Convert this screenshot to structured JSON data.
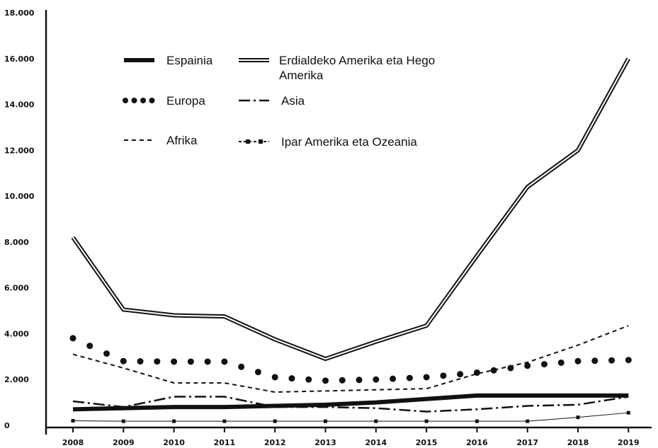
{
  "chart_data": {
    "type": "line",
    "title": "",
    "xlabel": "",
    "ylabel": "",
    "x": [
      "2008",
      "2009",
      "2010",
      "2011",
      "2012",
      "2013",
      "2014",
      "2015",
      "2016",
      "2017",
      "2018",
      "2019"
    ],
    "ylim": [
      0,
      18000
    ],
    "yticks": [
      0,
      2000,
      4000,
      6000,
      8000,
      10000,
      12000,
      14000,
      16000,
      18000
    ],
    "ytick_labels": [
      "0",
      "2.000",
      "4.000",
      "6.000",
      "8.000",
      "10.000",
      "12.000",
      "14.000",
      "16.000",
      "18.000"
    ],
    "grid": false,
    "legend_position": "top",
    "series": [
      {
        "name": "Espainia",
        "style": "thick",
        "color": "#111111",
        "values": [
          700,
          750,
          800,
          800,
          850,
          900,
          1000,
          1150,
          1300,
          1300,
          1300,
          1300
        ]
      },
      {
        "name": "Erdialdeko Amerika eta Hego Amerika",
        "style": "double",
        "color": "#111111",
        "values": [
          8200,
          5050,
          4800,
          4750,
          3750,
          2900,
          3650,
          4350,
          7400,
          10400,
          12000,
          16000
        ]
      },
      {
        "name": "Europa",
        "style": "dotted",
        "color": "#111111",
        "values": [
          3800,
          2800,
          2780,
          2780,
          2100,
          1950,
          2000,
          2100,
          2300,
          2600,
          2800,
          2850
        ]
      },
      {
        "name": "Asia",
        "style": "dashdot",
        "color": "#111111",
        "values": [
          1050,
          800,
          1250,
          1250,
          800,
          800,
          750,
          600,
          700,
          850,
          900,
          1250
        ]
      },
      {
        "name": "Afrika",
        "style": "dashed",
        "color": "#111111",
        "values": [
          3100,
          2500,
          1850,
          1850,
          1450,
          1500,
          1550,
          1600,
          2250,
          2750,
          3500,
          4350
        ]
      },
      {
        "name": "Ipar Amerika eta Ozeania",
        "style": "squares",
        "color": "#111111",
        "values": [
          200,
          180,
          180,
          180,
          180,
          180,
          180,
          180,
          180,
          180,
          350,
          550
        ]
      }
    ]
  }
}
